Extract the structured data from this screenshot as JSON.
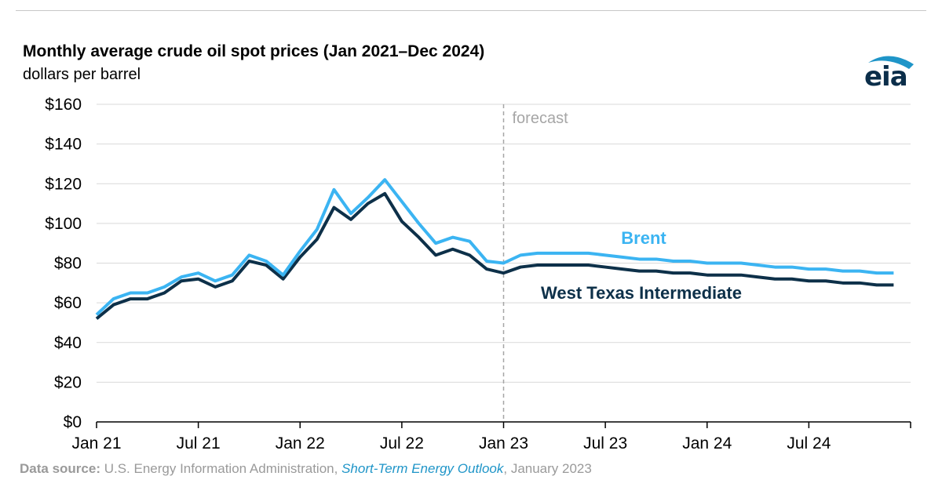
{
  "header": {
    "title": "Monthly average crude oil spot prices (Jan 2021–Dec 2024)",
    "subtitle": "dollars per barrel",
    "logo_text": "eia"
  },
  "footer": {
    "source_label": "Data source:",
    "source_org": " U.S. Energy Information Administration, ",
    "source_pub": "Short-Term Energy Outlook",
    "source_date": ", January 2023"
  },
  "colors": {
    "brent": "#3bb4f2",
    "wti": "#0d3049",
    "gridline": "#d9d9d9",
    "axis": "#000000",
    "forecast_line": "#a6a6a6",
    "logo_arc": "#1f95c8"
  },
  "chart_data": {
    "type": "line",
    "title": "Monthly average crude oil spot prices (Jan 2021–Dec 2024)",
    "ylabel": "dollars per barrel",
    "ylim": [
      0,
      160
    ],
    "yticks": [
      0,
      20,
      40,
      60,
      80,
      100,
      120,
      140,
      160
    ],
    "ytick_labels": [
      "$0",
      "$20",
      "$40",
      "$60",
      "$80",
      "$100",
      "$120",
      "$140",
      "$160"
    ],
    "xlim": [
      "Jan 2021",
      "Dec 2024"
    ],
    "xtick_labels": [
      "Jan 21",
      "Jul 21",
      "Jan 22",
      "Jul 22",
      "Jan 23",
      "Jul 23",
      "Jan 24",
      "Jul 24"
    ],
    "grid": true,
    "forecast_start": "Jan 2023",
    "forecast_label": "forecast",
    "x": [
      "Jan 2021",
      "Feb 2021",
      "Mar 2021",
      "Apr 2021",
      "May 2021",
      "Jun 2021",
      "Jul 2021",
      "Aug 2021",
      "Sep 2021",
      "Oct 2021",
      "Nov 2021",
      "Dec 2021",
      "Jan 2022",
      "Feb 2022",
      "Mar 2022",
      "Apr 2022",
      "May 2022",
      "Jun 2022",
      "Jul 2022",
      "Aug 2022",
      "Sep 2022",
      "Oct 2022",
      "Nov 2022",
      "Dec 2022",
      "Jan 2023",
      "Feb 2023",
      "Mar 2023",
      "Apr 2023",
      "May 2023",
      "Jun 2023",
      "Jul 2023",
      "Aug 2023",
      "Sep 2023",
      "Oct 2023",
      "Nov 2023",
      "Dec 2023",
      "Jan 2024",
      "Feb 2024",
      "Mar 2024",
      "Apr 2024",
      "May 2024",
      "Jun 2024",
      "Jul 2024",
      "Aug 2024",
      "Sep 2024",
      "Oct 2024",
      "Nov 2024",
      "Dec 2024"
    ],
    "series": [
      {
        "name": "Brent",
        "values": [
          54,
          62,
          65,
          65,
          68,
          73,
          75,
          71,
          74,
          84,
          81,
          74,
          86,
          97,
          117,
          105,
          113,
          122,
          111,
          100,
          90,
          93,
          91,
          81,
          80,
          84,
          85,
          85,
          85,
          85,
          84,
          83,
          82,
          82,
          81,
          81,
          80,
          80,
          80,
          79,
          78,
          78,
          77,
          77,
          76,
          76,
          75,
          75
        ]
      },
      {
        "name": "West Texas Intermediate",
        "values": [
          52,
          59,
          62,
          62,
          65,
          71,
          72,
          68,
          71,
          81,
          79,
          72,
          83,
          92,
          108,
          102,
          110,
          115,
          101,
          93,
          84,
          87,
          84,
          77,
          75,
          78,
          79,
          79,
          79,
          79,
          78,
          77,
          76,
          76,
          75,
          75,
          74,
          74,
          74,
          73,
          72,
          72,
          71,
          71,
          70,
          70,
          69,
          69
        ]
      }
    ]
  }
}
